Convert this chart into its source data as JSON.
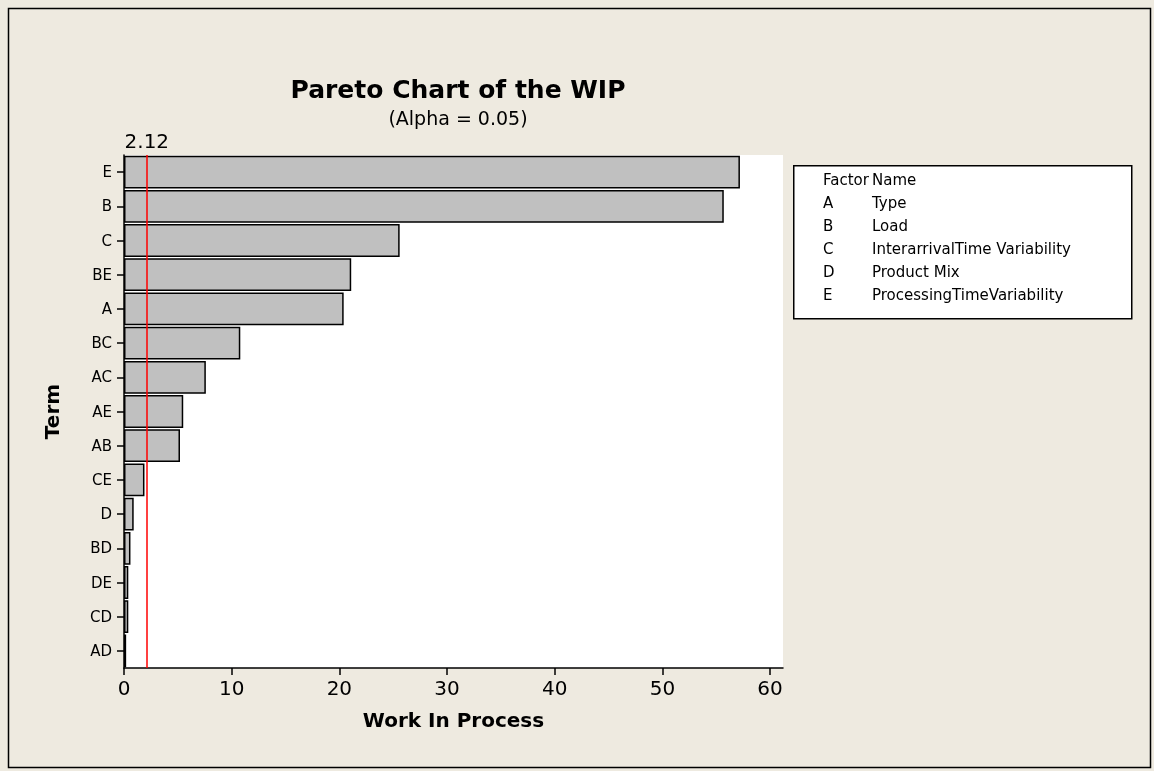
{
  "chart_data": {
    "type": "bar",
    "orientation": "horizontal",
    "title": "Pareto Chart of the WIP",
    "subtitle": "(Alpha = 0.05)",
    "xlabel": "Work In Process",
    "ylabel": "Term",
    "categories": [
      "E",
      "B",
      "C",
      "BE",
      "A",
      "BC",
      "AC",
      "AE",
      "AB",
      "CE",
      "D",
      "BD",
      "DE",
      "CD",
      "AD"
    ],
    "values": [
      57.2,
      55.7,
      25.6,
      21.1,
      20.4,
      10.8,
      7.6,
      5.5,
      5.2,
      1.9,
      0.9,
      0.6,
      0.4,
      0.4,
      0.2
    ],
    "color": "#c0c0c0",
    "xlim": [
      0,
      61.2
    ],
    "xticks": [
      0,
      10,
      20,
      30,
      40,
      50,
      60
    ],
    "ref_lines": [
      {
        "axis": "x",
        "value": 2.12,
        "label": "2.12",
        "color": "#ff0000"
      }
    ],
    "annotations": [
      "Factor",
      "Name",
      "A",
      "Type",
      "B",
      "Load",
      "C",
      "InterarrivalTime Variability",
      "D",
      "Product Mix",
      "E",
      "ProcessingTimeVariability"
    ],
    "grid": false
  }
}
